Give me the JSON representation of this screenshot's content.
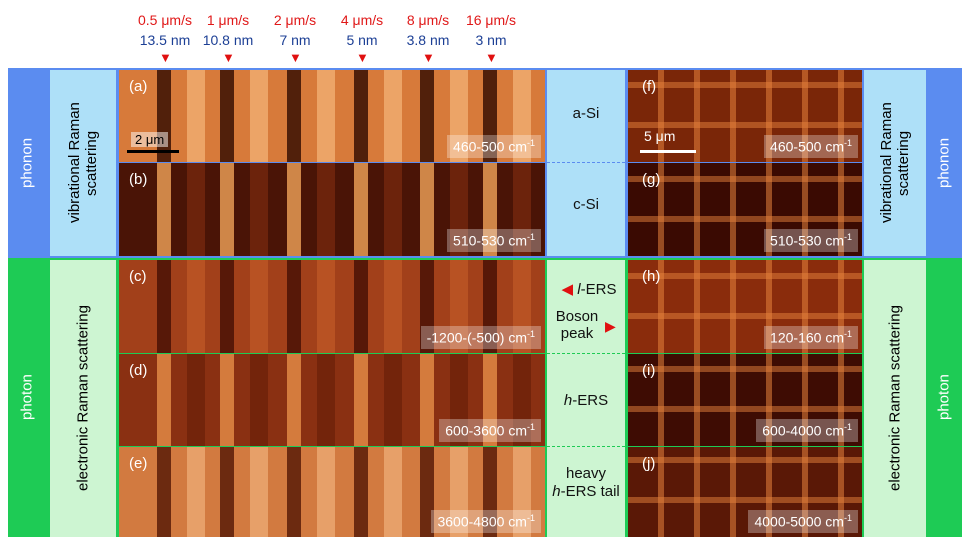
{
  "speeds": [
    {
      "speed": "0.5 μm/s",
      "size": "13.5 nm"
    },
    {
      "speed": "1 μm/s",
      "size": "10.8 nm"
    },
    {
      "speed": "2 μm/s",
      "size": "7 nm"
    },
    {
      "speed": "4 μm/s",
      "size": "5 nm"
    },
    {
      "speed": "8 μm/s",
      "size": "3.8 nm"
    },
    {
      "speed": "16 μm/s",
      "size": "3 nm"
    }
  ],
  "bands": {
    "phonon": "phonon",
    "phonon_desc": "vibrational Raman scattering",
    "photon": "photon",
    "photon_desc": "electronic Raman scattering"
  },
  "left_panels": [
    {
      "label": "(a)",
      "range": "460-500 cm",
      "sup": "-1",
      "scale": "2 μm"
    },
    {
      "label": "(b)",
      "range": "510-530 cm",
      "sup": "-1"
    },
    {
      "label": "(c)",
      "range": "-1200-(-500) cm",
      "sup": "-1"
    },
    {
      "label": "(d)",
      "range": "600-3600 cm",
      "sup": "-1"
    },
    {
      "label": "(e)",
      "range": "3600-4800 cm",
      "sup": "-1"
    }
  ],
  "right_panels": [
    {
      "label": "(f)",
      "range": "460-500 cm",
      "sup": "-1",
      "scale": "5 μm"
    },
    {
      "label": "(g)",
      "range": "510-530 cm",
      "sup": "-1"
    },
    {
      "label": "(h)",
      "range": "120-160 cm",
      "sup": "-1"
    },
    {
      "label": "(i)",
      "range": "600-4000 cm",
      "sup": "-1"
    },
    {
      "label": "(j)",
      "range": "4000-5000 cm",
      "sup": "-1"
    }
  ],
  "middle": {
    "a_si": "a-Si",
    "c_si": "c-Si",
    "l_ers_italic": "l",
    "l_ers_rest": "-ERS",
    "boson": "Boson peak",
    "h_ers_italic": "h",
    "h_ers_rest": "-ERS",
    "heavy": "heavy",
    "heavy_italic": "h",
    "heavy_rest": "-ERS tail"
  }
}
